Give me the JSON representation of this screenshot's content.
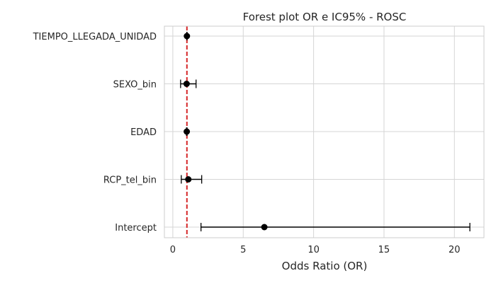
{
  "chart_data": {
    "type": "forest",
    "title": "Forest plot OR e IC95% - ROSC",
    "xlabel": "Odds Ratio (OR)",
    "ylabel": "",
    "xlim": [
      -0.6,
      22.1
    ],
    "xticks": [
      0,
      5,
      10,
      15,
      20
    ],
    "grid": true,
    "reference_line": {
      "x": 1,
      "color": "#d62728",
      "style": "dashed"
    },
    "point_color": "#000000",
    "categories": [
      "TIEMPO_LLEGADA_UNIDAD",
      "SEXO_bin",
      "EDAD",
      "RCP_tel_bin",
      "Intercept"
    ],
    "or": [
      1.0,
      0.98,
      0.99,
      1.1,
      6.5
    ],
    "ci_low": [
      0.99,
      0.55,
      0.97,
      0.6,
      2.0
    ],
    "ci_high": [
      1.01,
      1.65,
      1.01,
      2.05,
      21.1
    ]
  }
}
